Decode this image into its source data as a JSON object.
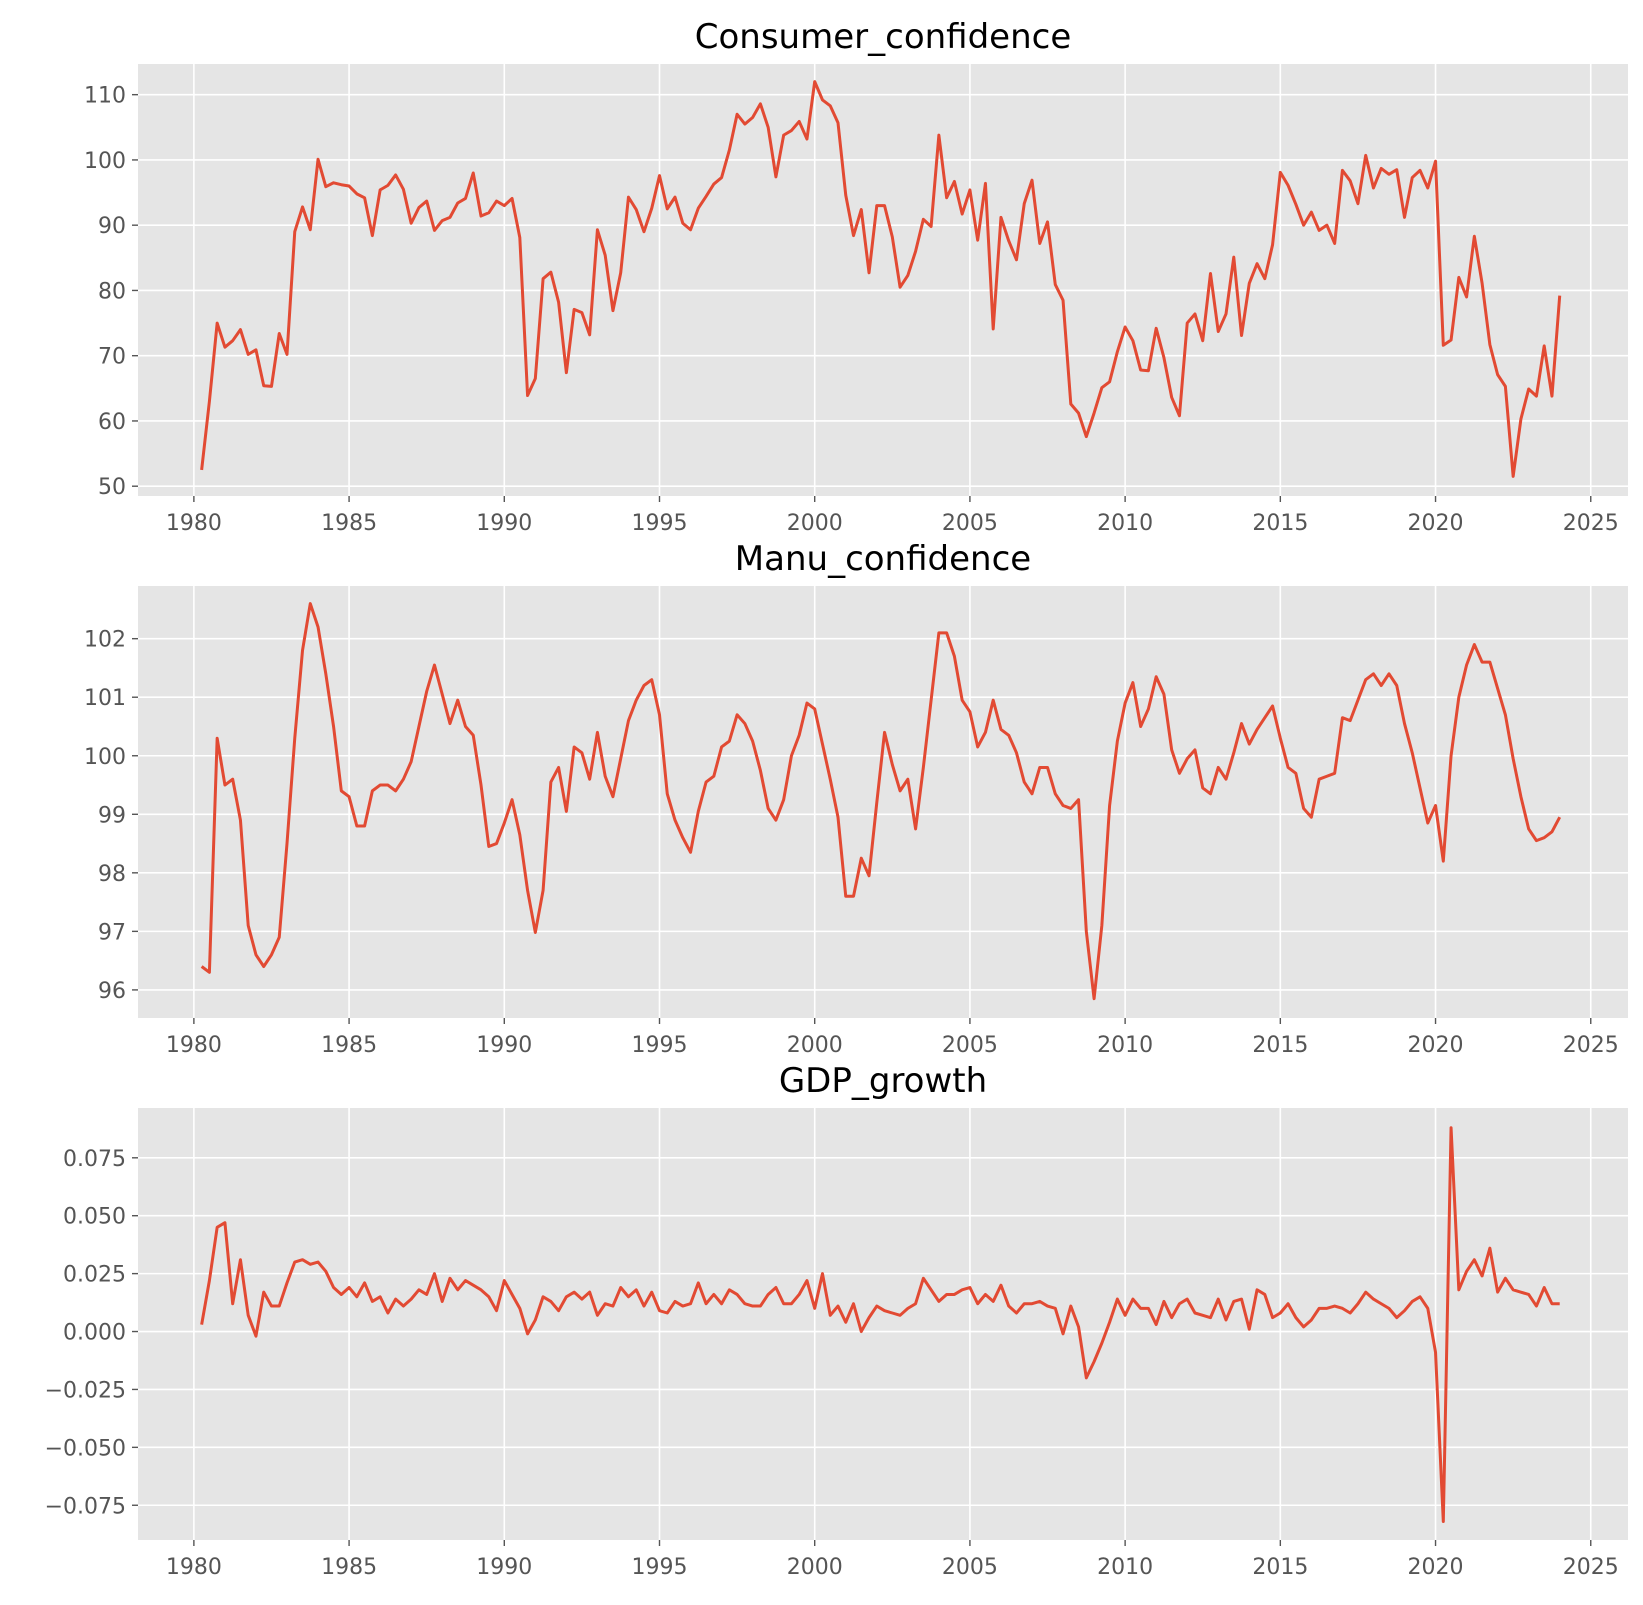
{
  "chart_data": [
    {
      "type": "line",
      "title": "Consumer_confidence",
      "xlabel": "",
      "ylabel": "",
      "xlim": [
        1978.2,
        2026.2
      ],
      "ylim": [
        48.5,
        114.7
      ],
      "x_ticks": [
        1980,
        1985,
        1990,
        1995,
        2000,
        2005,
        2010,
        2015,
        2020,
        2025
      ],
      "x_tick_labels": [
        "1980",
        "1985",
        "1990",
        "1995",
        "2000",
        "2005",
        "2010",
        "2015",
        "2020",
        "2025"
      ],
      "y_ticks": [
        50,
        60,
        70,
        80,
        90,
        100,
        110
      ],
      "y_tick_labels": [
        "50",
        "60",
        "70",
        "80",
        "90",
        "100",
        "110"
      ],
      "grid": true,
      "color": "#e24a33",
      "x_start": 1980.25,
      "x_step": 0.25,
      "values": [
        52.5,
        63.0,
        75.0,
        71.3,
        72.3,
        74.0,
        70.2,
        70.9,
        65.4,
        65.3,
        73.4,
        70.2,
        89.0,
        92.8,
        89.3,
        100.1,
        95.9,
        96.5,
        96.2,
        96.0,
        94.8,
        94.2,
        88.4,
        95.4,
        96.1,
        97.7,
        95.5,
        90.3,
        92.7,
        93.7,
        89.2,
        90.7,
        91.2,
        93.4,
        94.1,
        98.0,
        91.4,
        91.9,
        93.7,
        93.0,
        94.1,
        88.1,
        63.9,
        66.5,
        81.8,
        82.8,
        78.2,
        67.4,
        77.1,
        76.6,
        73.2,
        89.3,
        85.4,
        76.9,
        82.7,
        94.3,
        92.4,
        89.0,
        92.6,
        97.6,
        92.5,
        94.3,
        90.3,
        89.3,
        92.6,
        94.4,
        96.3,
        97.3,
        101.5,
        107.0,
        105.5,
        106.5,
        108.6,
        105.0,
        97.4,
        103.8,
        104.5,
        105.9,
        103.2,
        112.0,
        109.2,
        108.3,
        105.7,
        94.6,
        88.4,
        92.4,
        82.7,
        93.0,
        93.0,
        88.2,
        80.5,
        82.3,
        86.0,
        90.9,
        89.8,
        103.8,
        94.2,
        96.7,
        91.7,
        95.4,
        87.7,
        96.4,
        74.1,
        91.2,
        87.6,
        84.7,
        93.3,
        96.9,
        87.2,
        90.5,
        80.9,
        78.5,
        62.6,
        61.2,
        57.6,
        61.2,
        65.1,
        66.0,
        70.6,
        74.4,
        72.3,
        67.8,
        67.7,
        74.2,
        69.7,
        63.6,
        60.8,
        75.0,
        76.4,
        72.3,
        82.6,
        73.7,
        76.4,
        85.1,
        73.1,
        81.1,
        84.1,
        81.8,
        87.0,
        98.1,
        96.1,
        93.2,
        90.0,
        92.0,
        89.2,
        90.0,
        87.2,
        98.4,
        96.8,
        93.3,
        100.7,
        95.7,
        98.7,
        97.8,
        98.5,
        91.2,
        97.3,
        98.4,
        95.7,
        99.8,
        71.6,
        72.4,
        82.0,
        79.0,
        88.3,
        81.1,
        71.7,
        67.1,
        65.3,
        51.5,
        60.3,
        64.9,
        63.8,
        71.5,
        63.8,
        79.2
      ]
    },
    {
      "type": "line",
      "title": "Manu_confidence",
      "xlabel": "",
      "ylabel": "",
      "xlim": [
        1978.2,
        2026.2
      ],
      "ylim": [
        95.52,
        102.9
      ],
      "x_ticks": [
        1980,
        1985,
        1990,
        1995,
        2000,
        2005,
        2010,
        2015,
        2020,
        2025
      ],
      "x_tick_labels": [
        "1980",
        "1985",
        "1990",
        "1995",
        "2000",
        "2005",
        "2010",
        "2015",
        "2020",
        "2025"
      ],
      "y_ticks": [
        96,
        97,
        98,
        99,
        100,
        101,
        102
      ],
      "y_tick_labels": [
        "96",
        "97",
        "98",
        "99",
        "100",
        "101",
        "102"
      ],
      "grid": true,
      "color": "#e24a33",
      "x_start": 1980.25,
      "x_step": 0.25,
      "values": [
        96.4,
        96.3,
        100.3,
        99.5,
        99.6,
        98.9,
        97.1,
        96.6,
        96.4,
        96.6,
        96.9,
        98.5,
        100.3,
        101.8,
        102.6,
        102.2,
        101.4,
        100.5,
        99.4,
        99.3,
        98.8,
        98.8,
        99.4,
        99.5,
        99.5,
        99.4,
        99.6,
        99.9,
        100.5,
        101.1,
        101.55,
        101.05,
        100.55,
        100.95,
        100.5,
        100.35,
        99.5,
        98.45,
        98.5,
        98.85,
        99.25,
        98.65,
        97.7,
        96.98,
        97.7,
        99.55,
        99.8,
        99.05,
        100.15,
        100.05,
        99.6,
        100.4,
        99.65,
        99.3,
        99.95,
        100.6,
        100.95,
        101.2,
        101.3,
        100.7,
        99.35,
        98.9,
        98.6,
        98.35,
        99.05,
        99.55,
        99.65,
        100.15,
        100.25,
        100.7,
        100.55,
        100.25,
        99.75,
        99.1,
        98.9,
        99.25,
        100.0,
        100.35,
        100.9,
        100.8,
        100.2,
        99.6,
        98.95,
        97.6,
        97.6,
        98.25,
        97.95,
        99.2,
        100.4,
        99.85,
        99.4,
        99.6,
        98.75,
        99.8,
        100.95,
        102.1,
        102.1,
        101.7,
        100.95,
        100.75,
        100.15,
        100.4,
        100.95,
        100.45,
        100.35,
        100.05,
        99.55,
        99.35,
        99.8,
        99.8,
        99.35,
        99.15,
        99.1,
        99.25,
        97.0,
        95.85,
        97.1,
        99.15,
        100.25,
        100.9,
        101.25,
        100.5,
        100.8,
        101.35,
        101.05,
        100.1,
        99.7,
        99.95,
        100.1,
        99.45,
        99.35,
        99.8,
        99.6,
        100.05,
        100.55,
        100.2,
        100.45,
        100.65,
        100.85,
        100.3,
        99.8,
        99.7,
        99.1,
        98.95,
        99.6,
        99.65,
        99.7,
        100.65,
        100.6,
        100.95,
        101.3,
        101.4,
        101.2,
        101.4,
        101.2,
        100.55,
        100.05,
        99.45,
        98.85,
        99.15,
        98.2,
        100.0,
        101.0,
        101.55,
        101.9,
        101.6,
        101.6,
        101.15,
        100.7,
        99.95,
        99.3,
        98.75,
        98.55,
        98.6,
        98.7,
        98.95
      ]
    },
    {
      "type": "line",
      "title": "GDP_growth",
      "xlabel": "",
      "ylabel": "",
      "xlim": [
        1978.2,
        2026.2
      ],
      "ylim": [
        -0.09,
        0.0965
      ],
      "x_ticks": [
        1980,
        1985,
        1990,
        1995,
        2000,
        2005,
        2010,
        2015,
        2020,
        2025
      ],
      "x_tick_labels": [
        "1980",
        "1985",
        "1990",
        "1995",
        "2000",
        "2005",
        "2010",
        "2015",
        "2020",
        "2025"
      ],
      "y_ticks": [
        -0.075,
        -0.05,
        -0.025,
        0.0,
        0.025,
        0.05,
        0.075
      ],
      "y_tick_labels": [
        "−0.075",
        "−0.050",
        "−0.025",
        "0.000",
        "0.025",
        "0.050",
        "0.075"
      ],
      "grid": true,
      "color": "#e24a33",
      "x_start": 1980.25,
      "x_step": 0.25,
      "values": [
        0.003,
        0.022,
        0.045,
        0.047,
        0.012,
        0.031,
        0.007,
        -0.002,
        0.017,
        0.011,
        0.011,
        0.021,
        0.03,
        0.031,
        0.029,
        0.03,
        0.026,
        0.019,
        0.016,
        0.019,
        0.015,
        0.021,
        0.013,
        0.015,
        0.008,
        0.014,
        0.011,
        0.014,
        0.018,
        0.016,
        0.025,
        0.013,
        0.023,
        0.018,
        0.022,
        0.02,
        0.018,
        0.015,
        0.009,
        0.022,
        0.016,
        0.01,
        -0.001,
        0.005,
        0.015,
        0.013,
        0.009,
        0.015,
        0.017,
        0.014,
        0.017,
        0.007,
        0.012,
        0.011,
        0.019,
        0.015,
        0.018,
        0.011,
        0.017,
        0.009,
        0.008,
        0.013,
        0.011,
        0.012,
        0.021,
        0.012,
        0.016,
        0.012,
        0.018,
        0.016,
        0.012,
        0.011,
        0.011,
        0.016,
        0.019,
        0.012,
        0.012,
        0.016,
        0.022,
        0.01,
        0.025,
        0.007,
        0.011,
        0.004,
        0.012,
        0.0,
        0.006,
        0.011,
        0.009,
        0.008,
        0.007,
        0.01,
        0.012,
        0.023,
        0.018,
        0.013,
        0.016,
        0.016,
        0.018,
        0.019,
        0.012,
        0.016,
        0.013,
        0.02,
        0.011,
        0.008,
        0.012,
        0.012,
        0.013,
        0.011,
        0.01,
        -0.001,
        0.011,
        0.002,
        -0.02,
        -0.013,
        -0.005,
        0.004,
        0.014,
        0.007,
        0.014,
        0.01,
        0.01,
        0.003,
        0.013,
        0.006,
        0.012,
        0.014,
        0.008,
        0.007,
        0.006,
        0.014,
        0.005,
        0.013,
        0.014,
        0.001,
        0.018,
        0.016,
        0.006,
        0.008,
        0.012,
        0.006,
        0.002,
        0.005,
        0.01,
        0.01,
        0.011,
        0.01,
        0.008,
        0.012,
        0.017,
        0.014,
        0.012,
        0.01,
        0.006,
        0.009,
        0.013,
        0.015,
        0.01,
        -0.009,
        -0.082,
        0.088,
        0.018,
        0.026,
        0.031,
        0.024,
        0.036,
        0.017,
        0.023,
        0.018,
        0.017,
        0.016,
        0.011,
        0.019,
        0.012,
        0.012
      ]
    }
  ]
}
